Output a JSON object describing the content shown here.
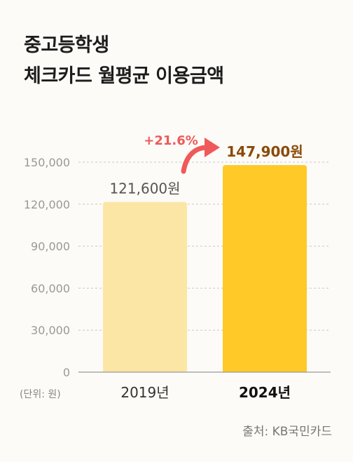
{
  "title_line1": "중고등학생",
  "title_line2": "체크카드 월평균 이용금액",
  "unit_note": "(단위: 원)",
  "source": "출처: KB국민카드",
  "growth_label": "+21.6%",
  "colors": {
    "bar_2019": "#fce6a6",
    "bar_2024": "#ffc928",
    "label_2024": "#8a4a0a",
    "arrow": "#f0595a"
  },
  "chart_data": {
    "type": "bar",
    "categories": [
      "2019년",
      "2024년"
    ],
    "values": [
      121600,
      147900
    ],
    "data_labels": [
      "121,600원",
      "147,900원"
    ],
    "yticks": [
      "0",
      "30,000",
      "60,000",
      "90,000",
      "120,000",
      "150,000"
    ],
    "ylim": [
      0,
      150000
    ],
    "grid": true
  }
}
